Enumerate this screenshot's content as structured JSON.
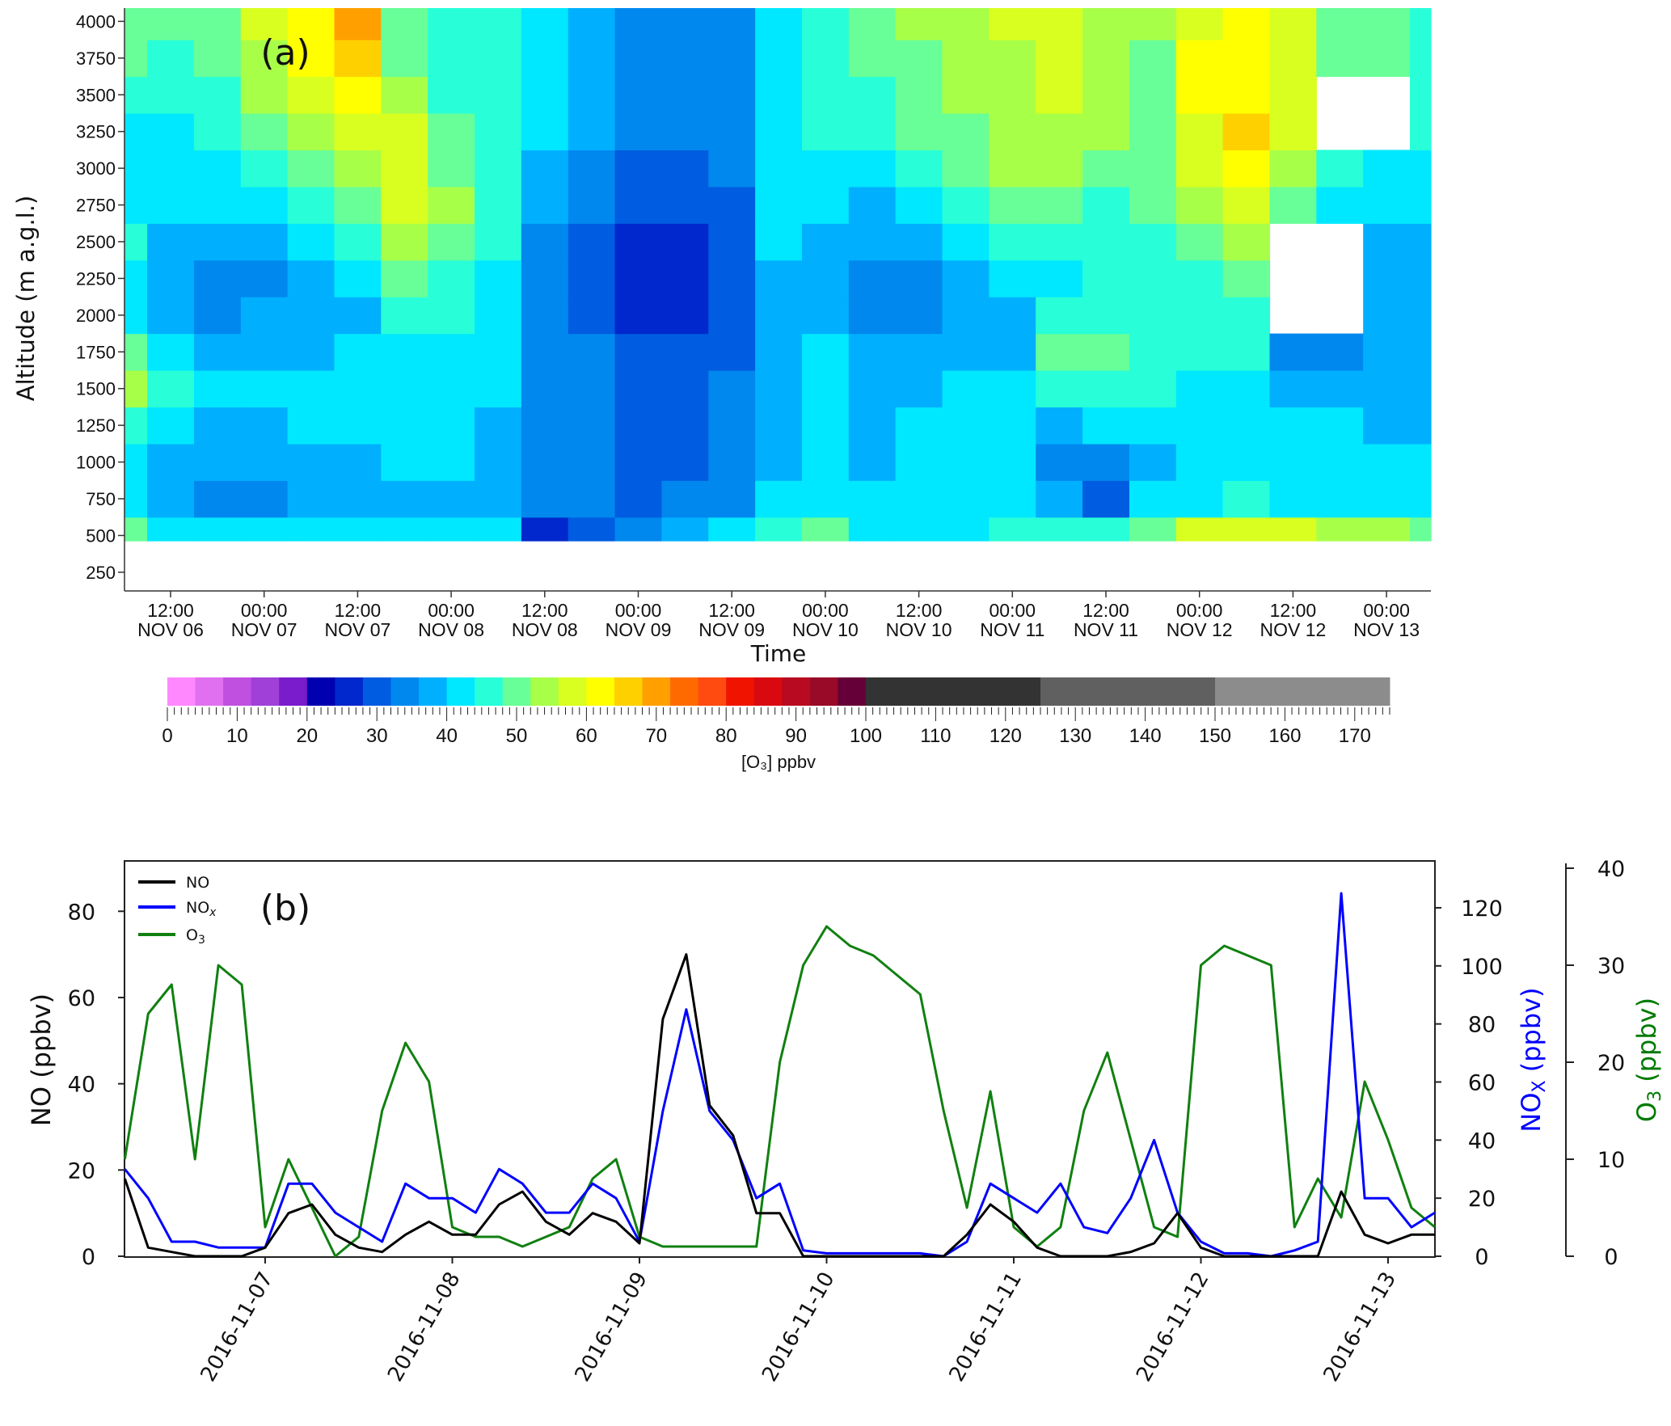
{
  "chart_data": [
    {
      "type": "heatmap",
      "panel_label": "(a)",
      "xlabel": "Time",
      "ylabel": "Altitude (m a.g.l.)",
      "y_ticks": [
        250,
        500,
        750,
        1000,
        1250,
        1500,
        1750,
        2000,
        2250,
        2500,
        2750,
        3000,
        3250,
        3500,
        3750,
        4000
      ],
      "x_ticks": [
        [
          "12:00",
          "NOV 06"
        ],
        [
          "00:00",
          "NOV 07"
        ],
        [
          "12:00",
          "NOV 07"
        ],
        [
          "00:00",
          "NOV 08"
        ],
        [
          "12:00",
          "NOV 08"
        ],
        [
          "00:00",
          "NOV 09"
        ],
        [
          "12:00",
          "NOV 09"
        ],
        [
          "00:00",
          "NOV 10"
        ],
        [
          "12:00",
          "NOV 10"
        ],
        [
          "00:00",
          "NOV 11"
        ],
        [
          "12:00",
          "NOV 11"
        ],
        [
          "00:00",
          "NOV 12"
        ],
        [
          "12:00",
          "NOV 12"
        ],
        [
          "00:00",
          "NOV 13"
        ]
      ],
      "altitudes": [
        500,
        750,
        1000,
        1250,
        1500,
        1750,
        2000,
        2250,
        2500,
        2750,
        3000,
        3250,
        3500,
        3750,
        4000
      ],
      "times": [
        "2016-11-06 06:00",
        "2016-11-06 12:00",
        "2016-11-06 18:00",
        "2016-11-07 00:00",
        "2016-11-07 06:00",
        "2016-11-07 12:00",
        "2016-11-07 18:00",
        "2016-11-08 00:00",
        "2016-11-08 06:00",
        "2016-11-08 12:00",
        "2016-11-08 18:00",
        "2016-11-09 00:00",
        "2016-11-09 06:00",
        "2016-11-09 12:00",
        "2016-11-09 18:00",
        "2016-11-10 00:00",
        "2016-11-10 06:00",
        "2016-11-10 12:00",
        "2016-11-10 18:00",
        "2016-11-11 00:00",
        "2016-11-11 06:00",
        "2016-11-11 12:00",
        "2016-11-11 18:00",
        "2016-11-12 00:00",
        "2016-11-12 06:00",
        "2016-11-12 12:00",
        "2016-11-12 18:00",
        "2016-11-13 00:00",
        "2016-11-13 06:00"
      ],
      "o3_ppbv": [
        [
          48,
          42,
          40,
          45,
          52,
          48,
          42,
          40,
          45,
          42,
          40,
          42,
          45,
          48,
          50
        ],
        [
          42,
          38,
          36,
          40,
          45,
          42,
          38,
          36,
          38,
          40,
          42,
          42,
          44,
          46,
          48
        ],
        [
          40,
          35,
          36,
          38,
          40,
          38,
          35,
          34,
          36,
          40,
          42,
          44,
          46,
          48,
          50
        ],
        [
          40,
          35,
          36,
          38,
          40,
          38,
          36,
          35,
          38,
          42,
          44,
          48,
          52,
          55,
          56
        ],
        [
          42,
          36,
          38,
          40,
          40,
          38,
          36,
          36,
          40,
          44,
          48,
          52,
          56,
          60,
          62
        ],
        [
          42,
          37,
          38,
          40,
          40,
          40,
          38,
          40,
          44,
          48,
          52,
          56,
          60,
          65,
          68
        ],
        [
          42,
          38,
          40,
          42,
          42,
          42,
          44,
          48,
          52,
          56,
          58,
          56,
          52,
          50,
          48
        ],
        [
          42,
          38,
          40,
          40,
          42,
          42,
          44,
          46,
          50,
          52,
          50,
          48,
          46,
          46,
          46
        ],
        [
          40,
          36,
          36,
          38,
          40,
          40,
          40,
          42,
          44,
          44,
          44,
          44,
          44,
          44,
          44
        ],
        [
          25,
          32,
          34,
          34,
          35,
          35,
          34,
          34,
          34,
          36,
          38,
          40,
          40,
          40,
          40
        ],
        [
          28,
          32,
          32,
          32,
          32,
          32,
          30,
          30,
          30,
          32,
          34,
          36,
          36,
          38,
          38
        ],
        [
          35,
          30,
          30,
          30,
          30,
          28,
          26,
          24,
          26,
          28,
          30,
          32,
          32,
          32,
          32
        ],
        [
          38,
          32,
          30,
          30,
          30,
          28,
          26,
          24,
          26,
          28,
          30,
          32,
          32,
          32,
          32
        ],
        [
          40,
          34,
          32,
          32,
          32,
          30,
          30,
          30,
          30,
          30,
          32,
          34,
          34,
          34,
          34
        ],
        [
          45,
          40,
          38,
          38,
          38,
          38,
          38,
          38,
          40,
          40,
          40,
          40,
          42,
          42,
          42
        ],
        [
          50,
          42,
          40,
          40,
          40,
          40,
          38,
          38,
          38,
          40,
          42,
          44,
          46,
          46,
          46
        ],
        [
          42,
          40,
          38,
          38,
          38,
          36,
          34,
          34,
          36,
          38,
          42,
          44,
          46,
          48,
          48
        ],
        [
          42,
          40,
          40,
          40,
          38,
          36,
          34,
          34,
          36,
          40,
          44,
          48,
          50,
          50,
          52
        ],
        [
          42,
          42,
          42,
          40,
          40,
          38,
          36,
          36,
          40,
          44,
          48,
          50,
          52,
          52,
          54
        ],
        [
          44,
          42,
          40,
          40,
          40,
          38,
          38,
          40,
          44,
          48,
          52,
          54,
          54,
          54,
          56
        ],
        [
          44,
          38,
          34,
          38,
          44,
          48,
          44,
          42,
          44,
          48,
          52,
          54,
          56,
          56,
          58
        ],
        [
          46,
          30,
          34,
          40,
          46,
          48,
          46,
          44,
          44,
          46,
          50,
          52,
          52,
          52,
          54
        ],
        [
          50,
          40,
          38,
          42,
          44,
          44,
          44,
          44,
          46,
          48,
          50,
          50,
          50,
          50,
          52
        ],
        [
          56,
          42,
          40,
          40,
          42,
          44,
          44,
          46,
          50,
          54,
          56,
          58,
          60,
          60,
          58
        ],
        [
          58,
          44,
          42,
          40,
          42,
          44,
          46,
          48,
          52,
          56,
          60,
          64,
          62,
          60,
          60
        ],
        [
          56,
          42,
          40,
          40,
          38,
          34,
          null,
          null,
          null,
          48,
          52,
          56,
          56,
          56,
          58
        ],
        [
          55,
          42,
          40,
          40,
          36,
          34,
          null,
          null,
          null,
          42,
          46,
          null,
          null,
          50,
          50
        ],
        [
          52,
          40,
          40,
          38,
          38,
          36,
          36,
          36,
          38,
          40,
          42,
          null,
          null,
          48,
          48
        ],
        [
          50,
          40,
          40,
          38,
          36,
          36,
          36,
          36,
          38,
          40,
          42,
          44,
          46,
          46,
          46
        ]
      ],
      "colorbar": {
        "title": "[O₃] ppbv",
        "range": [
          0,
          175
        ],
        "tick_labels": [
          "0",
          "10",
          "20",
          "30",
          "40",
          "50",
          "60",
          "70",
          "80",
          "90",
          "100",
          "110",
          "120",
          "130",
          "140",
          "150",
          "160",
          "170"
        ],
        "boundaries": [
          0,
          4,
          8,
          12,
          16,
          20,
          24,
          28,
          32,
          36,
          40,
          44,
          48,
          52,
          56,
          60,
          64,
          68,
          72,
          76,
          80,
          84,
          88,
          92,
          96,
          100,
          125,
          150,
          175
        ],
        "colors": [
          "#ff88ff",
          "#e070f0",
          "#c050e0",
          "#a040d8",
          "#7a1ccc",
          "#0000b0",
          "#0028cc",
          "#005ce0",
          "#0088ee",
          "#00b0ff",
          "#00e8ff",
          "#28ffd8",
          "#68ff98",
          "#a8ff48",
          "#d8ff20",
          "#ffff00",
          "#ffd000",
          "#ffa000",
          "#ff6a00",
          "#ff4a10",
          "#f01400",
          "#d80a10",
          "#b80a20",
          "#980a28",
          "#660038",
          "#333333",
          "#606060",
          "#8c8c8c"
        ]
      }
    },
    {
      "type": "line",
      "panel_label": "(b)",
      "x_tick_labels": [
        "2016-11-07",
        "2016-11-08",
        "2016-11-09",
        "2016-11-10",
        "2016-11-11",
        "2016-11-12",
        "2016-11-13"
      ],
      "y_left": {
        "label": "NO (ppbv)",
        "ticks": [
          0,
          20,
          40,
          60,
          80
        ]
      },
      "y_right": {
        "label_main": "NO",
        "label_sub": "X",
        "label_unit": " (ppbv)",
        "ticks": [
          0,
          20,
          40,
          60,
          80,
          100,
          120
        ],
        "color": "#0000ff"
      },
      "y_right2": {
        "label_main": "O",
        "label_sub": "3",
        "label_unit": " (ppbv)",
        "ticks": [
          0,
          10,
          20,
          30,
          40
        ],
        "color": "#007a00"
      },
      "legend": [
        {
          "label": "NO",
          "sub": "",
          "color": "#000000"
        },
        {
          "label": "NO",
          "sub": "x",
          "color": "#0000ff"
        },
        {
          "label": "O",
          "sub": "3",
          "color": "#108010"
        }
      ],
      "x": [
        "2016-11-06 06:00",
        "2016-11-06 09:00",
        "2016-11-06 12:00",
        "2016-11-06 15:00",
        "2016-11-06 18:00",
        "2016-11-06 21:00",
        "2016-11-07 00:00",
        "2016-11-07 03:00",
        "2016-11-07 06:00",
        "2016-11-07 09:00",
        "2016-11-07 12:00",
        "2016-11-07 15:00",
        "2016-11-07 18:00",
        "2016-11-07 21:00",
        "2016-11-08 00:00",
        "2016-11-08 03:00",
        "2016-11-08 06:00",
        "2016-11-08 09:00",
        "2016-11-08 12:00",
        "2016-11-08 15:00",
        "2016-11-08 18:00",
        "2016-11-08 21:00",
        "2016-11-09 00:00",
        "2016-11-09 03:00",
        "2016-11-09 06:00",
        "2016-11-09 09:00",
        "2016-11-09 12:00",
        "2016-11-09 15:00",
        "2016-11-09 18:00",
        "2016-11-09 21:00",
        "2016-11-10 00:00",
        "2016-11-10 03:00",
        "2016-11-10 06:00",
        "2016-11-10 09:00",
        "2016-11-10 12:00",
        "2016-11-10 15:00",
        "2016-11-10 18:00",
        "2016-11-10 21:00",
        "2016-11-11 00:00",
        "2016-11-11 03:00",
        "2016-11-11 06:00",
        "2016-11-11 09:00",
        "2016-11-11 12:00",
        "2016-11-11 15:00",
        "2016-11-11 18:00",
        "2016-11-11 21:00",
        "2016-11-12 00:00",
        "2016-11-12 03:00",
        "2016-11-12 06:00",
        "2016-11-12 09:00",
        "2016-11-12 12:00",
        "2016-11-12 15:00",
        "2016-11-12 18:00",
        "2016-11-12 21:00",
        "2016-11-13 00:00",
        "2016-11-13 03:00",
        "2016-11-13 06:00"
      ],
      "series": [
        {
          "name": "O3",
          "axis": "right2",
          "color": "#108010",
          "values": [
            10,
            25,
            28,
            10,
            30,
            28,
            3,
            10,
            5,
            0,
            2,
            15,
            22,
            18,
            3,
            2,
            2,
            1,
            2,
            3,
            8,
            10,
            2,
            1,
            1,
            1,
            1,
            1,
            20,
            30,
            34,
            32,
            31,
            29,
            27,
            15,
            5,
            17,
            3,
            1,
            3,
            15,
            21,
            12,
            3,
            2,
            30,
            32,
            31,
            30,
            3,
            8,
            4,
            18,
            12,
            5,
            3
          ]
        },
        {
          "name": "NOx",
          "axis": "right",
          "color": "#0000ff",
          "values": [
            30,
            20,
            5,
            5,
            3,
            3,
            3,
            25,
            25,
            15,
            10,
            5,
            25,
            20,
            20,
            15,
            30,
            25,
            15,
            15,
            25,
            20,
            5,
            50,
            85,
            50,
            40,
            20,
            25,
            2,
            1,
            1,
            1,
            1,
            1,
            0,
            5,
            25,
            20,
            15,
            25,
            10,
            8,
            20,
            40,
            15,
            5,
            1,
            1,
            0,
            2,
            5,
            125,
            20,
            20,
            10,
            15
          ]
        },
        {
          "name": "NO",
          "axis": "left",
          "color": "#000000",
          "values": [
            18,
            2,
            1,
            0,
            0,
            0,
            2,
            10,
            12,
            5,
            2,
            1,
            5,
            8,
            5,
            5,
            12,
            15,
            8,
            5,
            10,
            8,
            3,
            55,
            70,
            35,
            28,
            10,
            10,
            0,
            0,
            0,
            0,
            0,
            0,
            0,
            5,
            12,
            8,
            2,
            0,
            0,
            0,
            1,
            3,
            10,
            2,
            0,
            0,
            0,
            0,
            0,
            15,
            5,
            3,
            5,
            5
          ]
        }
      ]
    }
  ]
}
